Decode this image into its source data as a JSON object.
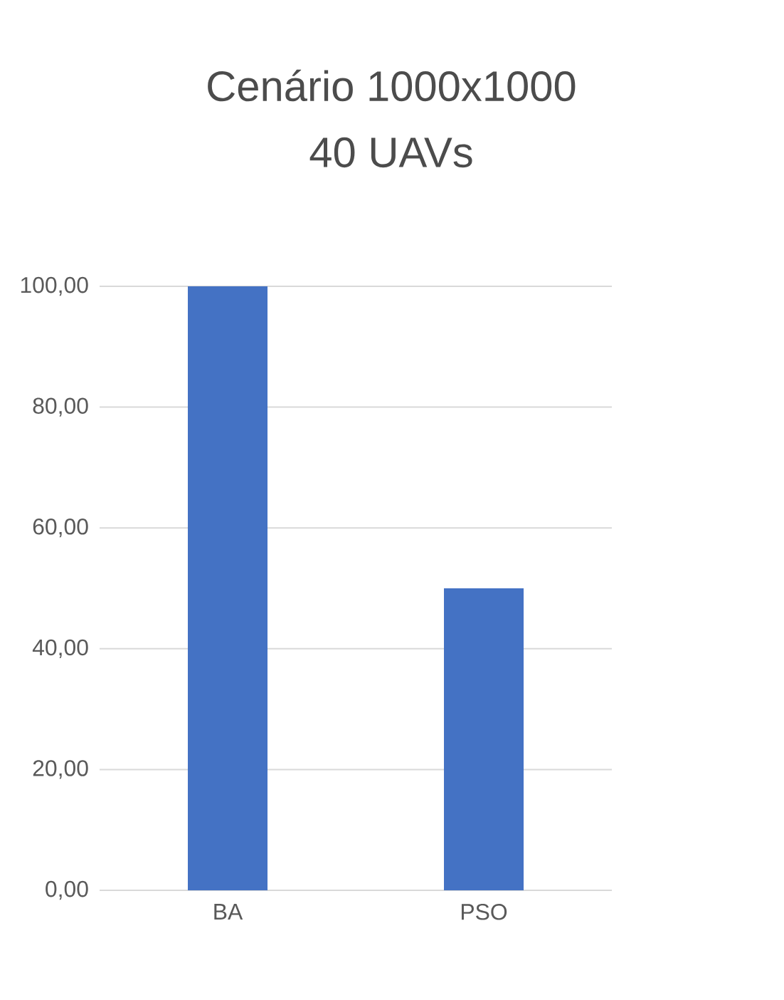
{
  "chart_data": {
    "type": "bar",
    "title": "Cenário 1000x1000",
    "subtitle": "40 UAVs",
    "categories": [
      "BA",
      "PSO"
    ],
    "values": [
      100,
      50
    ],
    "color": "#4472c4",
    "ylim": [
      0,
      100
    ],
    "yticks": [
      {
        "value": 0,
        "label": "0,00"
      },
      {
        "value": 20,
        "label": "20,00"
      },
      {
        "value": 40,
        "label": "40,00"
      },
      {
        "value": 60,
        "label": "60,00"
      },
      {
        "value": 80,
        "label": "80,00"
      },
      {
        "value": 100,
        "label": "100,00"
      }
    ],
    "grid": "y"
  }
}
